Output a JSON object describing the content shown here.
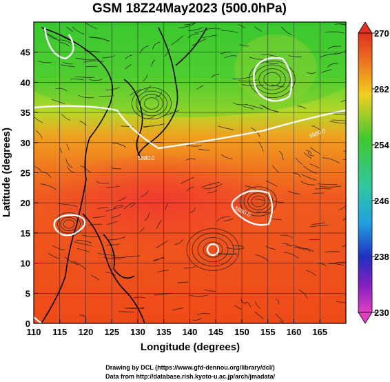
{
  "title": "GSM 18Z24May2023 (500.0hPa)",
  "xlabel": "Longitude (degrees)",
  "ylabel": "Latitude (degrees)",
  "x_ticks": [
    "110",
    "115",
    "120",
    "125",
    "130",
    "135",
    "140",
    "145",
    "150",
    "155",
    "160",
    "165"
  ],
  "y_ticks": [
    "0",
    "5",
    "10",
    "15",
    "20",
    "25",
    "30",
    "35",
    "40",
    "45"
  ],
  "colorbar_ticks": [
    "270",
    "262",
    "254",
    "246",
    "238",
    "230"
  ],
  "contour_labels": [
    "5880.0",
    "5880.0",
    "5880.0"
  ],
  "footer": {
    "line1": "Drawing by DCL (https://www.gfd-dennou.org/library/dcl/)",
    "line2": "Data from http://database.rish.kyoto-u.ac.jp/arch/jmadata/"
  },
  "chart_data": {
    "type": "heatmap",
    "variable": "temperature field with streamlines and geopotential height contours",
    "xlim": [
      110,
      170
    ],
    "ylim": [
      0,
      50
    ],
    "colorbar_range": [
      230,
      270
    ],
    "colorbar_ticks": [
      270,
      262,
      254,
      246,
      238,
      230
    ],
    "contour_value": 5880.0,
    "colors": {
      "high": "#e02010",
      "mid_warm": "#f07020",
      "mid": "#f0c020",
      "cool": "#30c830",
      "low": "#2020c0",
      "lowest": "#e040c0"
    }
  }
}
